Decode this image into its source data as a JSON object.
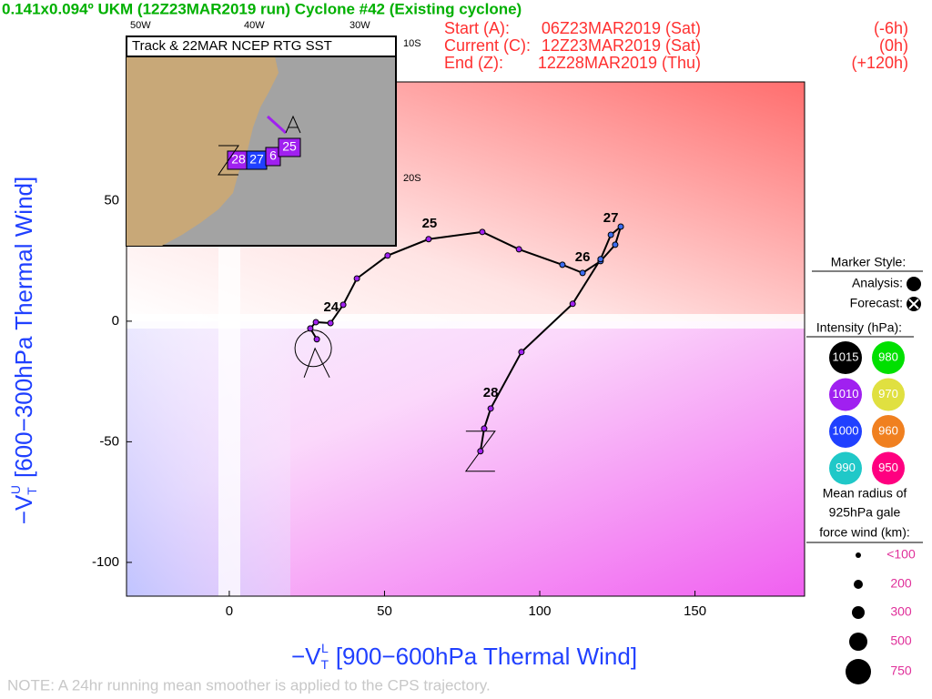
{
  "header": {
    "title": "0.141x0.094º UKM (12Z23MAR2019 run) Cyclone #42 (Existing cyclone)",
    "times": [
      [
        "Start (A):",
        "06Z23MAR2019 (Sat)",
        "(-6h)"
      ],
      [
        "Current (C):",
        "12Z23MAR2019 (Sat)",
        "(0h)"
      ],
      [
        "End (Z):",
        "12Z28MAR2019 (Thu)",
        "(+120h)"
      ]
    ]
  },
  "chart_data": {
    "type": "line",
    "x_label": {
      "symbol": "−V",
      "sub": "T",
      "sup": "L",
      "text": "[900−600hPa Thermal Wind]"
    },
    "y_label": {
      "symbol": "−V",
      "sub": "T",
      "sup": "U",
      "text": "[600−300hPa Thermal Wind]"
    },
    "xlim": [
      -33.1,
      185.3
    ],
    "ylim": [
      -114,
      99.2
    ],
    "xticks": [
      0,
      50,
      100,
      150
    ],
    "yticks": [
      -100,
      -50,
      0,
      50
    ],
    "series": [
      {
        "color": "#000000",
        "marker_colors": [
          "#a020f0",
          "#a020f0",
          "#a020f0",
          "#a020f0",
          "#a020f0",
          "#a020f0",
          "#a020f0",
          "#a020f0",
          "#a020f0",
          "#a020f0",
          "#3c6cf0",
          "#3c6cf0",
          "#3c6cf0",
          "#3c6cf0",
          "#3c6cf0",
          "#3c6cf0",
          "#3c6cf0",
          "#a020f0",
          "#a020f0",
          "#a020f0",
          "#a020f0",
          "#a020f0"
        ],
        "x": [
          28.2,
          26.1,
          27.9,
          32.6,
          36.7,
          41.1,
          51.0,
          64.2,
          81.5,
          93.3,
          107.3,
          113.8,
          119.6,
          124.3,
          126.1,
          122.9,
          119.6,
          110.6,
          94.1,
          84.2,
          82.1,
          80.9
        ],
        "values": [
          -7.5,
          -3.0,
          -0.4,
          -0.8,
          6.8,
          17.7,
          27.2,
          34.0,
          37.0,
          29.8,
          23.4,
          20.0,
          24.9,
          31.7,
          39.2,
          35.8,
          25.7,
          7.2,
          -12.8,
          -36.2,
          -44.5,
          -53.9
        ]
      }
    ],
    "annotations": [
      {
        "text": "24",
        "x": 32.8,
        "y": 5.7
      },
      {
        "text": "25",
        "x": 64.5,
        "y": 40.4
      },
      {
        "text": "26",
        "x": 113.8,
        "y": 26.4
      },
      {
        "text": "27",
        "x": 122.9,
        "y": 42.6
      },
      {
        "text": "28",
        "x": 84.2,
        "y": -29.8
      }
    ]
  },
  "inset": {
    "title": "Track & 22MAR NCEP RTG SST",
    "lon_labels": [
      "50W",
      "40W",
      "30W"
    ],
    "lat_labels": [
      "10S",
      "20S"
    ],
    "storm_labels": [
      "28",
      "27",
      "6",
      "25"
    ]
  },
  "legend": {
    "marker_title": "Marker Style:",
    "analysis": "Analysis:",
    "forecast": "Forecast:",
    "intensity_title": "Intensity (hPa):",
    "intensity": [
      {
        "label": "1015",
        "color": "#000000"
      },
      {
        "label": "980",
        "color": "#00e000"
      },
      {
        "label": "1010",
        "color": "#a020f0"
      },
      {
        "label": "970",
        "color": "#e0e040"
      },
      {
        "label": "1000",
        "color": "#2040ff"
      },
      {
        "label": "960",
        "color": "#f08020"
      },
      {
        "label": "990",
        "color": "#20c8c8"
      },
      {
        "label": "950",
        "color": "#ff0080"
      }
    ],
    "size_title": [
      "Mean radius of",
      "925hPa gale",
      "force wind (km):"
    ],
    "sizes": [
      "<100",
      "200",
      "300",
      "500",
      "750"
    ]
  },
  "note": "NOTE:  A 24hr running mean smoother is applied to the CPS trajectory."
}
